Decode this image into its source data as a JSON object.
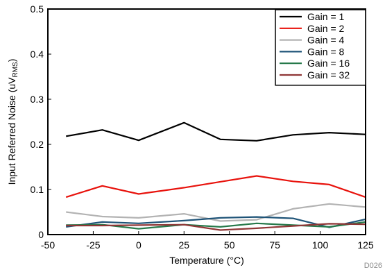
{
  "chart_data": {
    "type": "line",
    "xlabel": "Temperature (°C)",
    "ylabel_main": "Input Referred Noise (uV",
    "ylabel_sub": "RMS",
    "ylabel_close": ")",
    "xlim": [
      -50,
      125
    ],
    "ylim": [
      0,
      0.5
    ],
    "xticks": [
      -50,
      -25,
      0,
      25,
      50,
      75,
      100,
      125
    ],
    "yticks": [
      0,
      0.1,
      0.2,
      0.3,
      0.4,
      0.5
    ],
    "ytick_labels": [
      "0",
      "0.1",
      "0.2",
      "0.3",
      "0.4",
      "0.5"
    ],
    "grid": false,
    "legend": "top-right",
    "footnote": "D026",
    "x": [
      -40,
      -20,
      0,
      25,
      45,
      65,
      85,
      105,
      125
    ],
    "series": [
      {
        "name": "Gain = 1",
        "color": "#000000",
        "values": [
          0.218,
          0.232,
          0.209,
          0.248,
          0.211,
          0.208,
          0.221,
          0.226,
          0.222
        ]
      },
      {
        "name": "Gain = 2",
        "color": "#e8120c",
        "values": [
          0.083,
          0.108,
          0.09,
          0.104,
          0.117,
          0.13,
          0.118,
          0.111,
          0.083
        ]
      },
      {
        "name": "Gain = 4",
        "color": "#b3b3b3",
        "values": [
          0.05,
          0.04,
          0.037,
          0.046,
          0.03,
          0.033,
          0.057,
          0.068,
          0.061
        ]
      },
      {
        "name": "Gain = 8",
        "color": "#1f5478",
        "values": [
          0.017,
          0.028,
          0.025,
          0.031,
          0.037,
          0.039,
          0.036,
          0.016,
          0.034
        ]
      },
      {
        "name": "Gain = 16",
        "color": "#26794a",
        "values": [
          0.021,
          0.022,
          0.013,
          0.022,
          0.017,
          0.025,
          0.021,
          0.017,
          0.028
        ]
      },
      {
        "name": "Gain = 32",
        "color": "#8f3636",
        "values": [
          0.02,
          0.02,
          0.021,
          0.022,
          0.01,
          0.014,
          0.019,
          0.024,
          0.023
        ]
      }
    ]
  }
}
